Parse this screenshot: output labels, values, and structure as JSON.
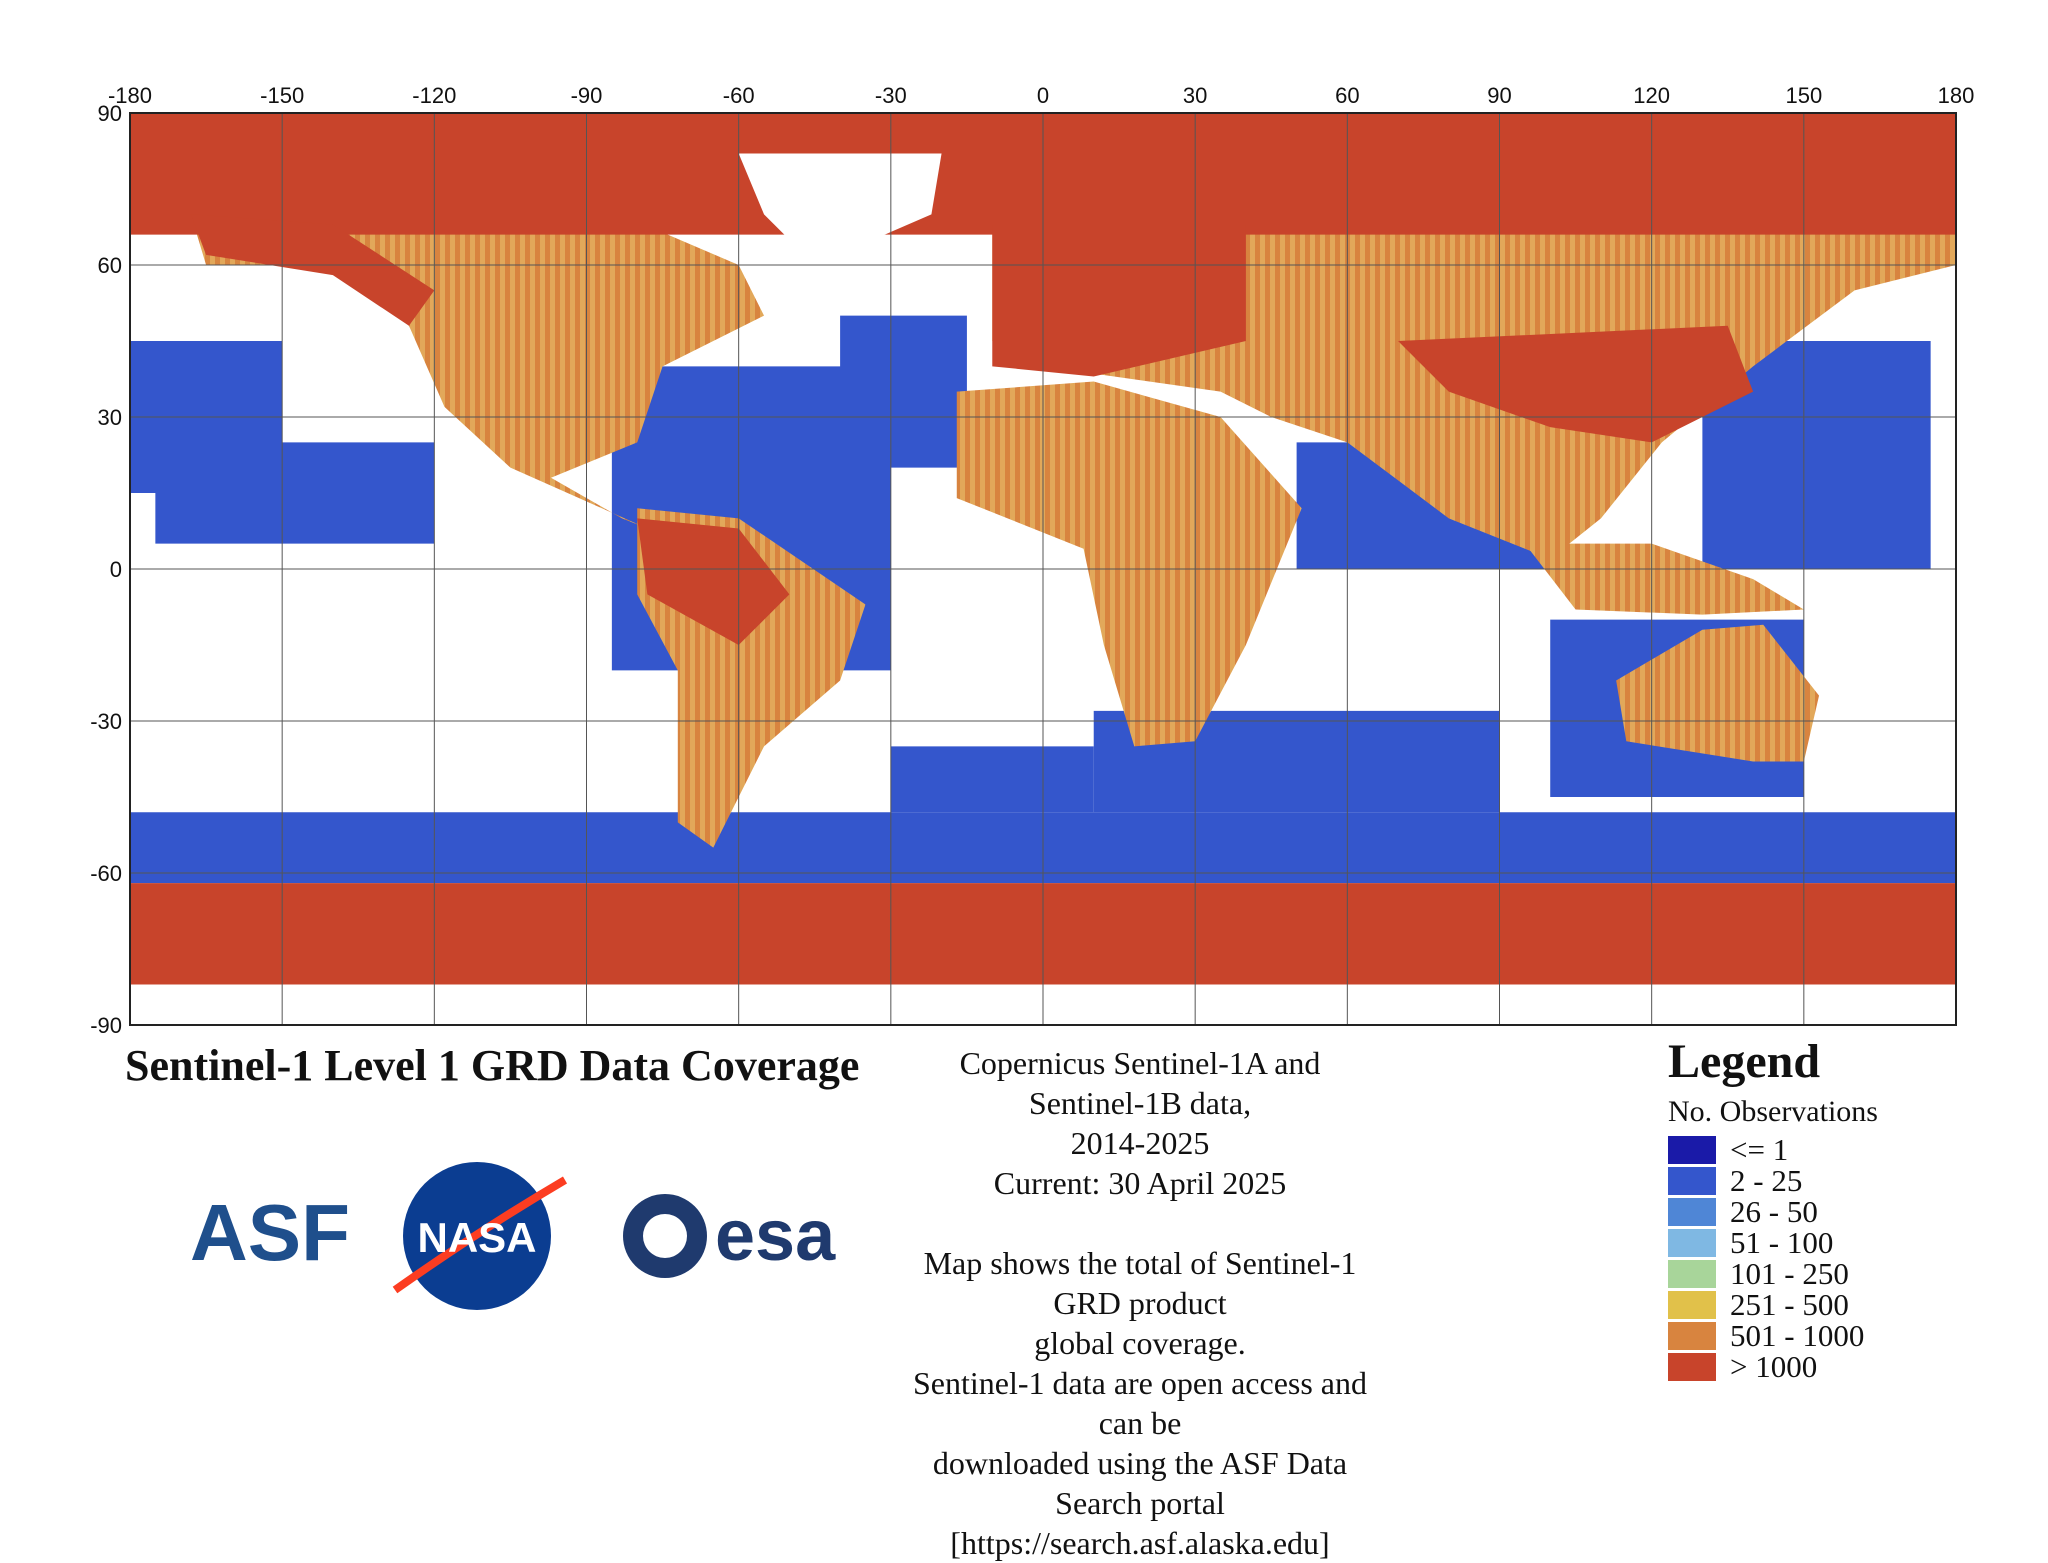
{
  "map": {
    "lon_ticks": [
      "-180",
      "-150",
      "-120",
      "-90",
      "-60",
      "-30",
      "0",
      "30",
      "60",
      "90",
      "120",
      "150",
      "180"
    ],
    "lat_ticks": [
      "90",
      "60",
      "30",
      "0",
      "-30",
      "-60",
      "-90"
    ],
    "colors": {
      "le1": "#1a1aa8",
      "2_25": "#3456cc",
      "26_50": "#4f86d6",
      "51_100": "#7fb8e3",
      "101_250": "#a8d59a",
      "251_500": "#e1c14a",
      "501_1000": "#d8843f",
      "gt1000": "#c8442b"
    }
  },
  "title": "Sentinel-1 Level 1 GRD Data Coverage",
  "info": {
    "line1": "Copernicus Sentinel-1A and Sentinel-1B data,",
    "line2": "2014-2025",
    "line3": "Current: 30 April 2025",
    "line4": "Map shows the total of Sentinel-1 GRD product",
    "line5": "global coverage.",
    "line6": "Sentinel-1 data are open access and can be",
    "line7": "downloaded using the ASF Data Search portal",
    "line8": "[https://search.asf.alaska.edu]"
  },
  "legend": {
    "title": "Legend",
    "subtitle": "No. Observations",
    "items": [
      {
        "label": "<= 1",
        "color": "#1a1aa8"
      },
      {
        "label": "2 - 25",
        "color": "#3456cc"
      },
      {
        "label": "26 - 50",
        "color": "#4f86d6"
      },
      {
        "label": "51 - 100",
        "color": "#7fb8e3"
      },
      {
        "label": "101 - 250",
        "color": "#a8d59a"
      },
      {
        "label": "251 - 500",
        "color": "#e1c14a"
      },
      {
        "label": "501 - 1000",
        "color": "#d8843f"
      },
      {
        "label": "> 1000",
        "color": "#c8442b"
      }
    ]
  },
  "logos": {
    "asf": "ASF",
    "nasa": "NASA",
    "esa": "esa"
  }
}
